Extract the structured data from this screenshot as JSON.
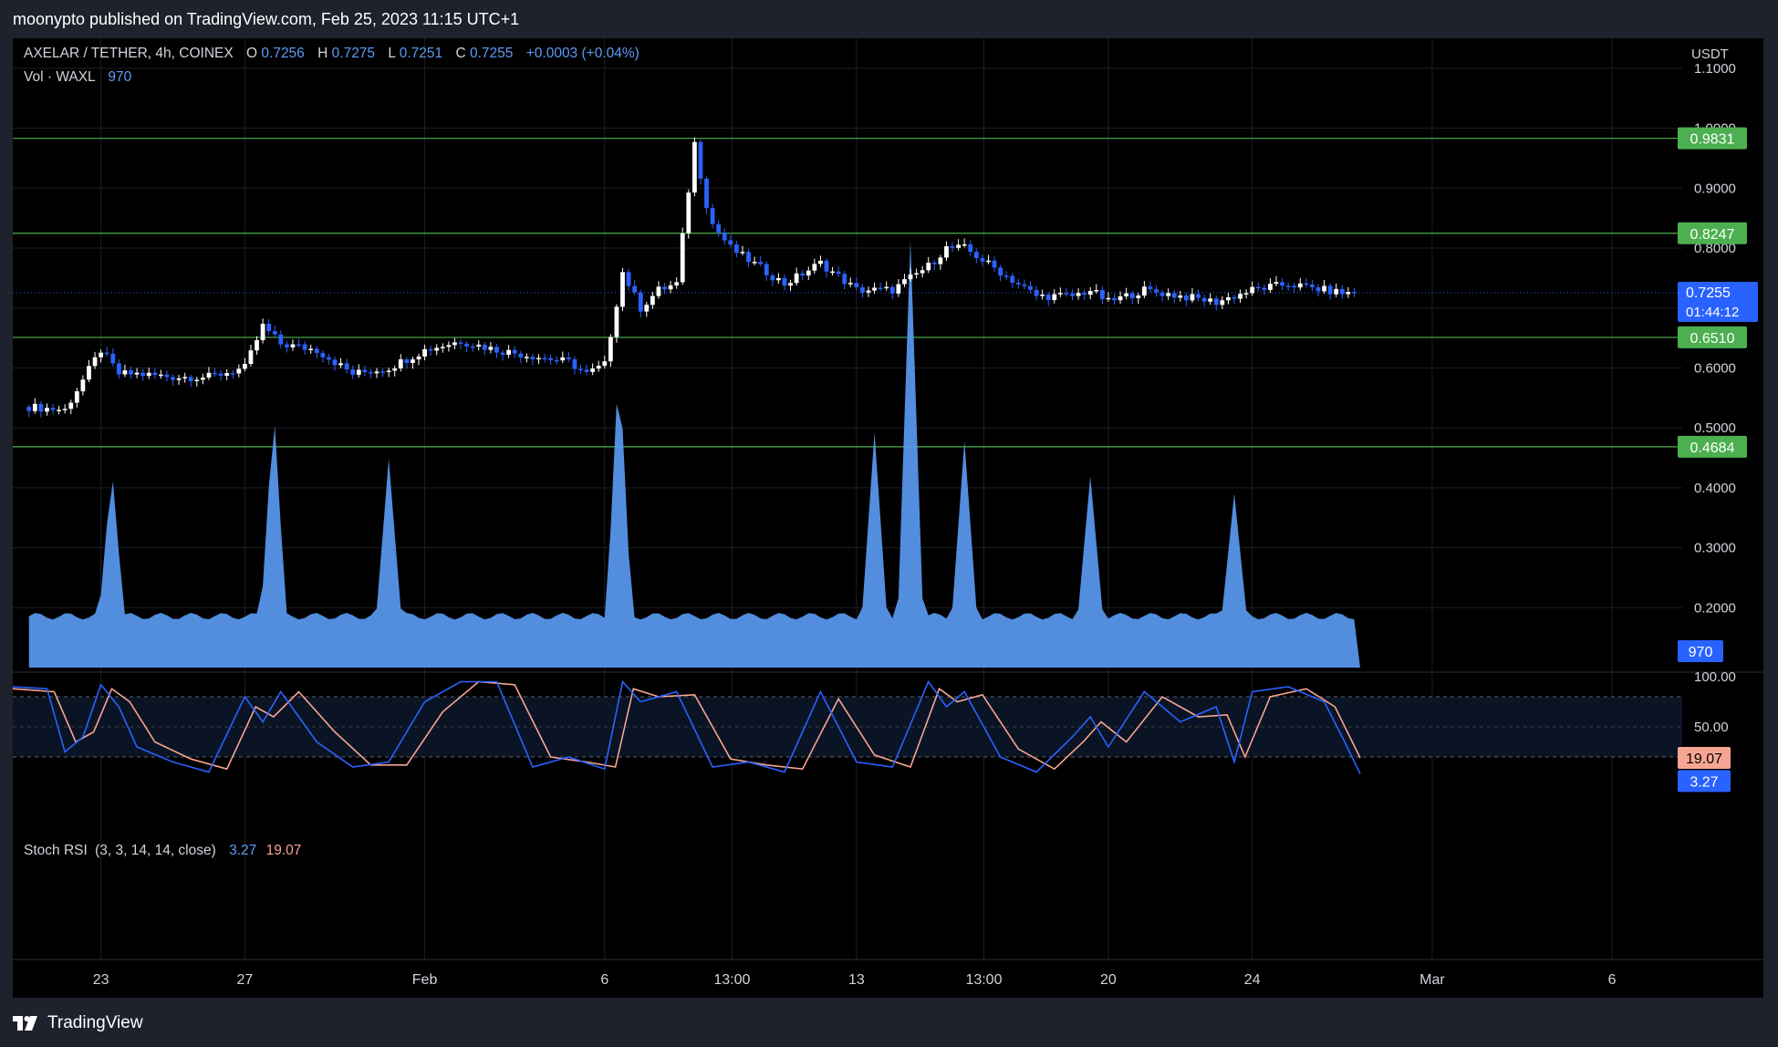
{
  "header": {
    "publisher_line": "moonypto published on TradingView.com, Feb 25, 2023 11:15 UTC+1"
  },
  "footer": {
    "brand": "TradingView"
  },
  "legend": {
    "symbol": "AXELAR / TETHER, 4h, COINEX",
    "o_label": "O",
    "o_value": "0.7256",
    "h_label": "H",
    "h_value": "0.7275",
    "l_label": "L",
    "l_value": "0.7251",
    "c_label": "C",
    "c_value": "0.7255",
    "change": "+0.0003 (+0.04%)",
    "vol_label": "Vol · WAXL",
    "vol_value": "970"
  },
  "colors": {
    "up": "#ffffff",
    "down": "#2962ff",
    "level": "#4caf50",
    "volume": "#5b9cf6",
    "stoch_k": "#2962ff",
    "stoch_d": "#f7a593",
    "price_tag": "#2962ff"
  },
  "chart_data": {
    "type": "candlestick",
    "title": "AXELAR / TETHER, 4h, COINEX",
    "currency": "USDT",
    "y_ticks": [
      "1.1000",
      "1.0000",
      "0.9000",
      "0.8000",
      "0.7000",
      "0.6000",
      "0.5000",
      "0.4000",
      "0.3000",
      "0.2000"
    ],
    "y_tick_values": [
      1.1,
      1.0,
      0.9,
      0.8,
      0.7,
      0.6,
      0.5,
      0.4,
      0.3,
      0.2
    ],
    "ylim": [
      0.1,
      1.15
    ],
    "x_ticks": [
      {
        "label": "23",
        "day": 2
      },
      {
        "label": "27",
        "day": 6
      },
      {
        "label": "Feb",
        "day": 11
      },
      {
        "label": "6",
        "day": 16
      },
      {
        "label": "13:00",
        "day": 19.54
      },
      {
        "label": "13",
        "day": 23
      },
      {
        "label": "13:00",
        "day": 26.54
      },
      {
        "label": "20",
        "day": 30
      },
      {
        "label": "24",
        "day": 34
      },
      {
        "label": "Mar",
        "day": 39
      },
      {
        "label": "6",
        "day": 44
      }
    ],
    "xlim_days": [
      -0.45,
      45.95
    ],
    "horizontal_levels": [
      {
        "value": 0.9831,
        "label": "0.9831"
      },
      {
        "value": 0.8247,
        "label": "0.8247"
      },
      {
        "value": 0.651,
        "label": "0.6510"
      },
      {
        "value": 0.4684,
        "label": "0.4684"
      }
    ],
    "current_price": {
      "value": 0.7255,
      "label": "0.7255",
      "countdown": "01:44:12"
    },
    "close_path_days": [
      -0.45,
      0,
      1,
      2,
      2.5,
      3,
      4,
      5,
      6,
      6.5,
      7,
      8,
      9,
      10,
      11,
      12,
      13,
      14,
      15,
      15.5,
      16,
      16.5,
      17,
      17.5,
      18,
      18.5,
      18.8,
      19,
      19.5,
      20,
      21,
      22,
      23,
      24,
      25,
      25.5,
      26,
      26.5,
      27,
      28,
      29,
      29.5,
      30,
      30.5,
      31,
      32,
      33,
      34,
      35,
      36,
      36.5,
      37
    ],
    "close_path_values": [
      0.52,
      0.535,
      0.53,
      0.63,
      0.59,
      0.59,
      0.585,
      0.585,
      0.6,
      0.67,
      0.64,
      0.63,
      0.59,
      0.6,
      0.63,
      0.645,
      0.63,
      0.62,
      0.61,
      0.59,
      0.605,
      0.76,
      0.7,
      0.73,
      0.74,
      0.975,
      0.88,
      0.84,
      0.8,
      0.78,
      0.74,
      0.775,
      0.73,
      0.73,
      0.77,
      0.8,
      0.8,
      0.78,
      0.76,
      0.72,
      0.72,
      0.73,
      0.71,
      0.72,
      0.73,
      0.72,
      0.71,
      0.73,
      0.74,
      0.73,
      0.725,
      0.7255
    ],
    "volume": {
      "label": "Vol · WAXL",
      "last_label": "970",
      "spike_days": [
        2.3,
        6.8,
        10,
        16.4,
        23.5,
        24.5,
        26.0,
        29.5,
        33.5
      ],
      "spike_values": [
        1.7,
        2.4,
        1.8,
        3.0,
        2.1,
        4.3,
        2.0,
        1.6,
        1.4
      ]
    },
    "stoch_rsi": {
      "title": "Stoch RSI",
      "params": "(3, 3, 14, 14, close)",
      "k_label": "3.27",
      "d_label": "19.07",
      "k": 3.27,
      "d": 19.07,
      "ticks": [
        "100.00",
        "50.00"
      ],
      "bands": [
        80,
        20
      ],
      "k_days": [
        -0.45,
        0.5,
        1,
        1.5,
        2,
        2.5,
        3,
        4,
        5,
        6,
        6.5,
        7,
        8,
        9,
        10,
        11,
        12,
        13,
        14,
        15,
        16,
        16.5,
        17,
        18,
        19,
        20,
        21,
        22,
        23,
        24,
        25,
        25.5,
        26,
        27,
        28,
        29,
        29.5,
        30,
        31,
        32,
        33,
        33.5,
        34,
        35,
        36,
        36.5,
        37
      ],
      "k_values": [
        90,
        88,
        25,
        40,
        92,
        70,
        30,
        15,
        5,
        80,
        55,
        85,
        35,
        10,
        15,
        75,
        95,
        95,
        10,
        20,
        8,
        95,
        75,
        85,
        10,
        15,
        5,
        85,
        15,
        10,
        95,
        70,
        85,
        20,
        5,
        40,
        60,
        30,
        85,
        55,
        70,
        15,
        85,
        90,
        75,
        40,
        3.27
      ],
      "d_days": [
        -0.45,
        0.7,
        1.3,
        1.8,
        2.3,
        2.8,
        3.5,
        4.5,
        5.5,
        6.3,
        6.8,
        7.5,
        8.5,
        9.5,
        10.5,
        11.5,
        12.5,
        13.5,
        14.5,
        15.5,
        16.3,
        16.8,
        17.5,
        18.5,
        19.5,
        20.5,
        21.5,
        22.5,
        23.5,
        24.5,
        25.3,
        25.8,
        26.5,
        27.5,
        28.5,
        29.3,
        29.8,
        30.5,
        31.5,
        32.5,
        33.3,
        33.8,
        34.5,
        35.5,
        36.3,
        37
      ],
      "d_values": [
        88,
        85,
        35,
        45,
        88,
        75,
        35,
        18,
        8,
        70,
        60,
        85,
        45,
        12,
        12,
        65,
        95,
        92,
        20,
        15,
        10,
        88,
        80,
        82,
        18,
        12,
        8,
        78,
        22,
        10,
        88,
        75,
        82,
        28,
        8,
        35,
        55,
        35,
        80,
        60,
        62,
        20,
        80,
        88,
        70,
        19.07
      ]
    }
  }
}
